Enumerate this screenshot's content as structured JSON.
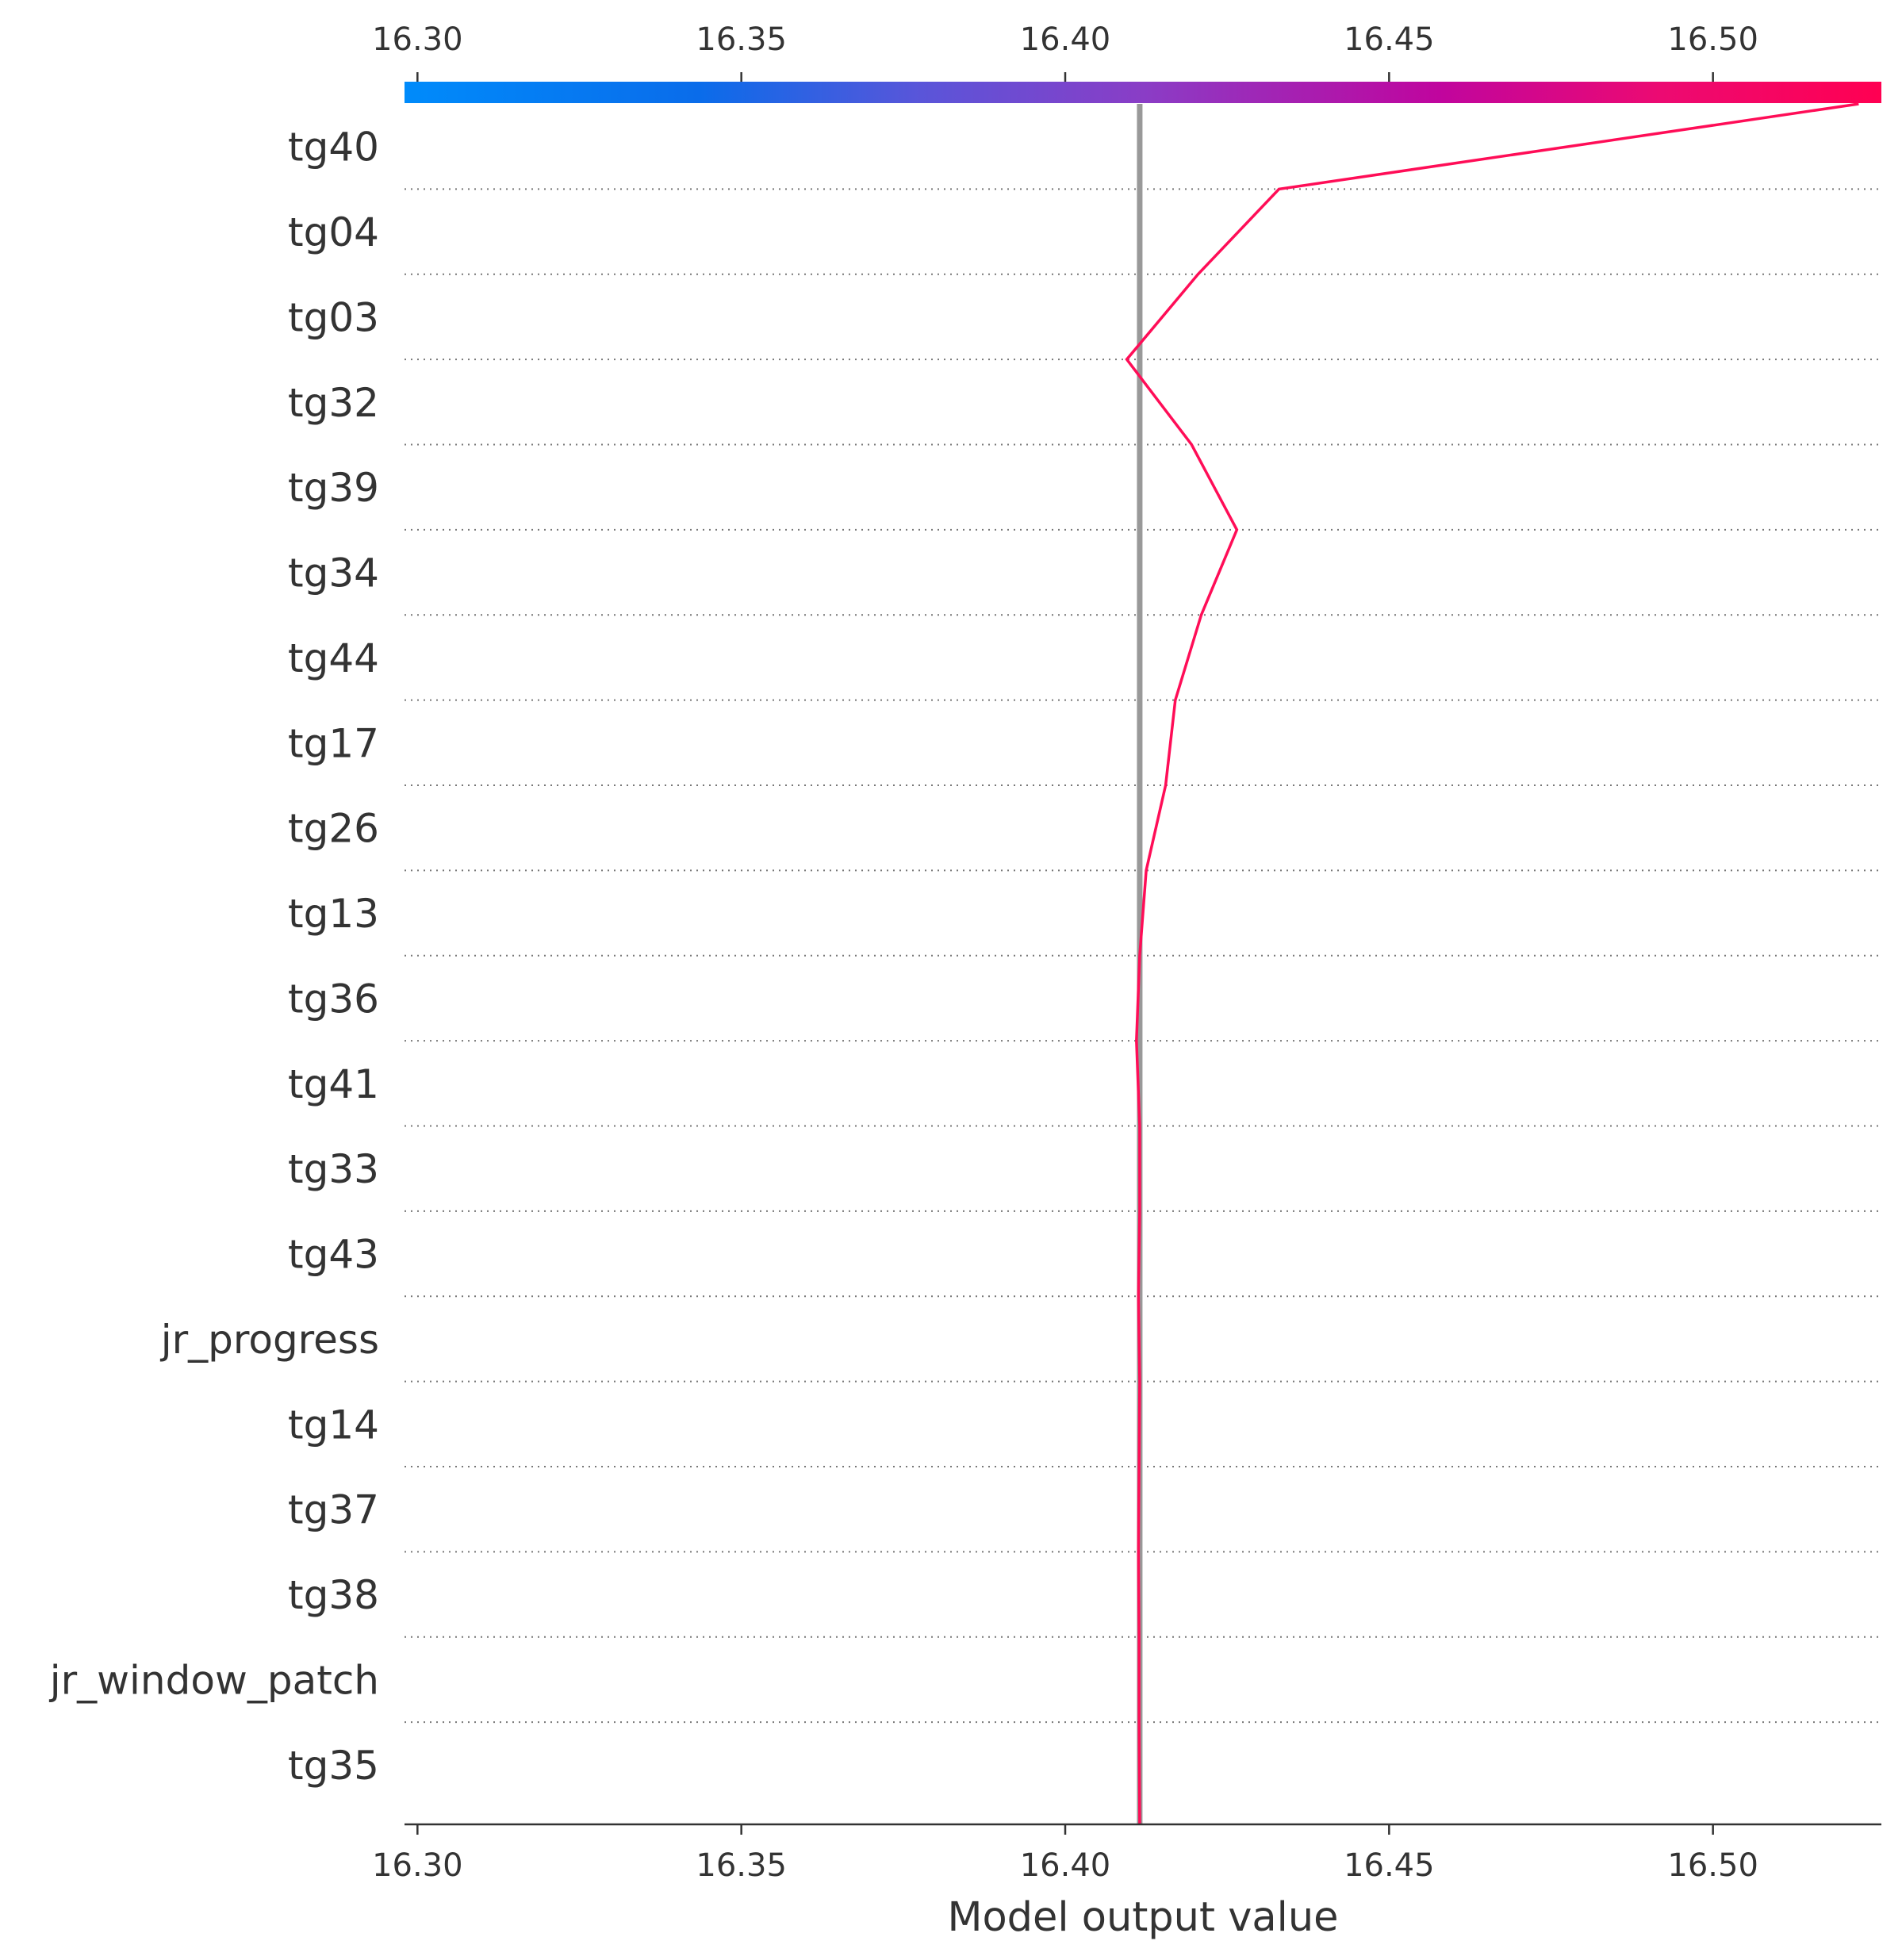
{
  "chart_data": {
    "type": "line",
    "title": "",
    "xlabel": "Model output value",
    "ylabel": "",
    "xlim": [
      16.298,
      16.526
    ],
    "x_ticks": [
      "16.30",
      "16.35",
      "16.40",
      "16.45",
      "16.50"
    ],
    "x_tick_values": [
      16.3,
      16.35,
      16.4,
      16.45,
      16.5
    ],
    "base_value": 16.4115,
    "features": [
      "tg40",
      "tg04",
      "tg03",
      "tg32",
      "tg39",
      "tg34",
      "tg44",
      "tg17",
      "tg26",
      "tg13",
      "tg36",
      "tg41",
      "tg33",
      "tg43",
      "jr_progress",
      "tg14",
      "tg37",
      "tg38",
      "jr_window_patch",
      "tg35"
    ],
    "series": [
      {
        "color": "#ff0d57",
        "values": [
          16.5225,
          16.433,
          16.4205,
          16.4095,
          16.4195,
          16.4265,
          16.421,
          16.417,
          16.4155,
          16.4125,
          16.4115,
          16.411,
          16.4115,
          16.4115,
          16.4113,
          16.4115,
          16.4114,
          16.4113,
          16.4114,
          16.4114,
          16.4115
        ]
      }
    ],
    "colorbar": {
      "low_color": "#008bfb",
      "mid_color": "#8a3dd1",
      "high_color": "#ff0052"
    },
    "grid": "dotted horizontal per feature",
    "base_line_color": "#999999"
  }
}
